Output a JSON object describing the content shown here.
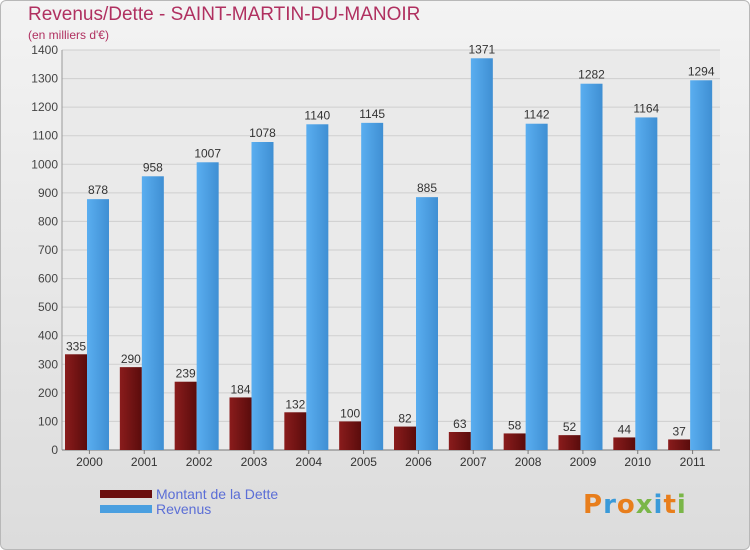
{
  "title": "Revenus/Dette - SAINT-MARTIN-DU-MANOIR",
  "subtitle": "(en milliers d'€)",
  "logo": {
    "text": "Proxiti",
    "letters": [
      "P",
      "r",
      "o",
      "x",
      "i",
      "t",
      "i"
    ],
    "colors": [
      "#e87e1c",
      "#3a9ad9",
      "#e87e1c",
      "#7ab648",
      "#3a9ad9",
      "#e87e1c",
      "#7ab648"
    ]
  },
  "colors": {
    "debt": "#6b0f0f",
    "revenue": "#4a9fe0"
  },
  "chart_data": {
    "type": "bar",
    "title": "Revenus/Dette - SAINT-MARTIN-DU-MANOIR",
    "ylabel": "(en milliers d'€)",
    "ylim": [
      0,
      1400
    ],
    "yticks": [
      0,
      100,
      200,
      300,
      400,
      500,
      600,
      700,
      800,
      900,
      1000,
      1100,
      1200,
      1300,
      1400
    ],
    "categories": [
      "2000",
      "2001",
      "2002",
      "2003",
      "2004",
      "2005",
      "2006",
      "2007",
      "2008",
      "2009",
      "2010",
      "2011"
    ],
    "series": [
      {
        "name": "Montant de la Dette",
        "values": [
          335,
          290,
          239,
          184,
          132,
          100,
          82,
          63,
          58,
          52,
          44,
          37
        ]
      },
      {
        "name": "Revenus",
        "values": [
          878,
          958,
          1007,
          1078,
          1140,
          1145,
          885,
          1371,
          1142,
          1282,
          1164,
          1294
        ]
      }
    ],
    "grid": true,
    "legend": "bottom-left"
  }
}
